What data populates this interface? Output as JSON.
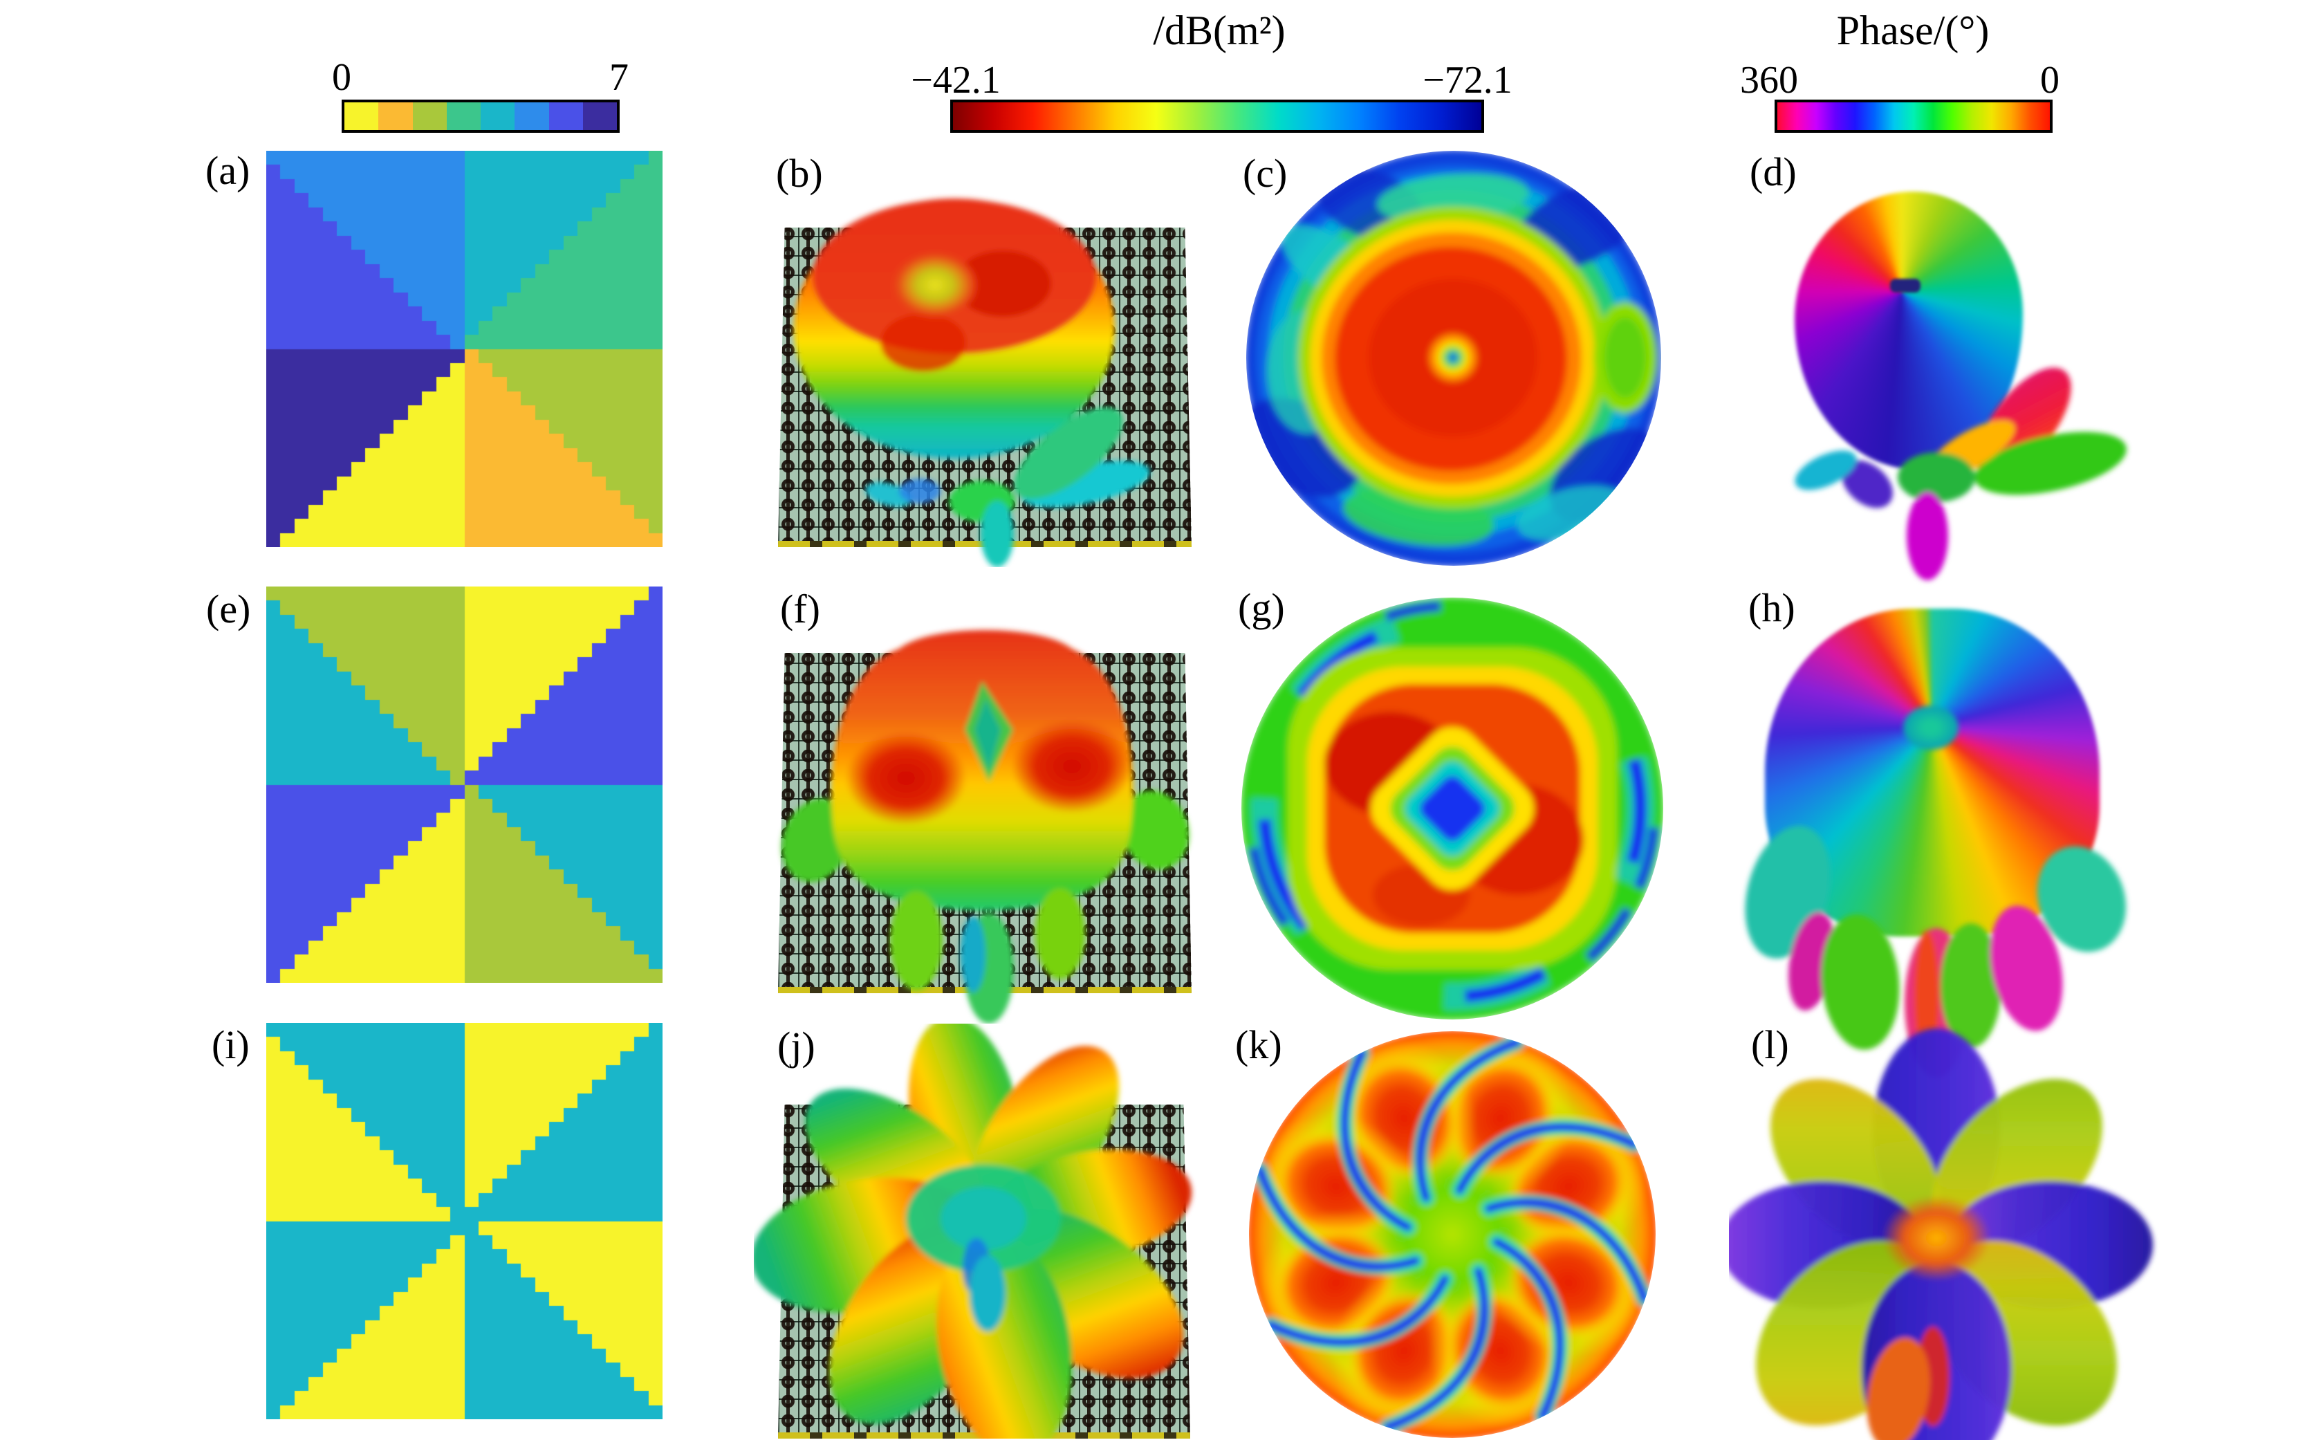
{
  "chart_data": {
    "type": "heatmap",
    "description": "Metasurface OAM beam figure: 12 panels (a)-(l). Rows = OAM charge steps 1,2,4. Col1: 8-level coding phase maps; Col2: 3D scattering patterns on metasurface; Col3: far-field magnitude circles (jet); Col4: phase-colored 3D patterns.",
    "colorbars": [
      {
        "id": "level",
        "title": "",
        "min_label": "0",
        "max_label": "7",
        "kind": "discrete",
        "colors": [
          "#f7f32b",
          "#fbba33",
          "#a9c83b",
          "#3cc68c",
          "#1ab6c9",
          "#2e8ceb",
          "#4a51e8",
          "#3b2d9f"
        ]
      },
      {
        "id": "magnitude",
        "title": "/dB(m²)",
        "min_label": "−42.1",
        "max_label": "−72.1",
        "kind": "continuous",
        "colormap": "jet-reversed",
        "stops": [
          "#7f0000",
          "#c80000",
          "#ff1e00",
          "#ff7800",
          "#ffd200",
          "#f5ff14",
          "#a0f03c",
          "#46e87d",
          "#00dcc8",
          "#00b4f0",
          "#0082ff",
          "#0041f0",
          "#001ed2",
          "#000096"
        ]
      },
      {
        "id": "phase",
        "title": "Phase/(°)",
        "min_label": "360",
        "max_label": "0",
        "kind": "continuous",
        "colormap": "hsv-reversed",
        "stops": [
          "#ff0a32",
          "#ff00b4",
          "#c800ff",
          "#6400ff",
          "#1e14ff",
          "#0064ff",
          "#00c8f0",
          "#00f0b4",
          "#00e63c",
          "#50ff00",
          "#b4f000",
          "#f0e600",
          "#ffaa00",
          "#ff5000",
          "#ff1400"
        ]
      }
    ],
    "panels": [
      {
        "label": "(a)",
        "type": "phase_map",
        "grid": 28,
        "levels": 8,
        "step": 1,
        "offset": 3,
        "sector_levels_ccw_from_east": [
          3,
          4,
          5,
          6,
          7,
          0,
          1,
          2
        ]
      },
      {
        "label": "(b)",
        "type": "3d_pattern_on_array",
        "shape": "vortex donut beam with central null and side lobes"
      },
      {
        "label": "(c)",
        "type": "farfield_circle",
        "feature": "red annulus, central null dot, blue rim"
      },
      {
        "label": "(d)",
        "type": "3d_phase_pattern",
        "hue_cycles": 1
      },
      {
        "label": "(e)",
        "type": "phase_map",
        "grid": 28,
        "levels": 8,
        "step": 2,
        "offset": 6,
        "sector_levels_ccw_from_east": [
          6,
          0,
          2,
          4,
          6,
          0,
          2,
          4
        ]
      },
      {
        "label": "(f)",
        "type": "3d_pattern_on_array",
        "shape": "wide crown beam, two red maxima, green skirt"
      },
      {
        "label": "(g)",
        "type": "farfield_circle",
        "feature": "red rounded square, central blue diamond null, blue rim arcs"
      },
      {
        "label": "(h)",
        "type": "3d_phase_pattern",
        "hue_cycles": 2
      },
      {
        "label": "(i)",
        "type": "phase_map",
        "grid": 28,
        "levels": 8,
        "step": 4,
        "offset": 4,
        "sector_levels_ccw_from_east": [
          4,
          0,
          4,
          0,
          4,
          0,
          4,
          0
        ]
      },
      {
        "label": "(j)",
        "type": "3d_pattern_on_array",
        "petal_count": 8,
        "petal_angles": [
          10,
          55,
          100,
          145,
          190,
          235,
          280,
          325
        ]
      },
      {
        "label": "(k)",
        "type": "farfield_circle",
        "lobe_count": 8,
        "lobe_start_angle": 22.5,
        "feature": "8 red lobes with blue spiral filaments on green background"
      },
      {
        "label": "(l)",
        "type": "3d_phase_pattern",
        "petal_count": 8,
        "petal_angles": [
          90,
          45,
          0,
          315,
          270,
          225,
          180,
          135
        ],
        "petal_colors_alternate": [
          "indigo",
          "yellow-green"
        ]
      }
    ]
  }
}
